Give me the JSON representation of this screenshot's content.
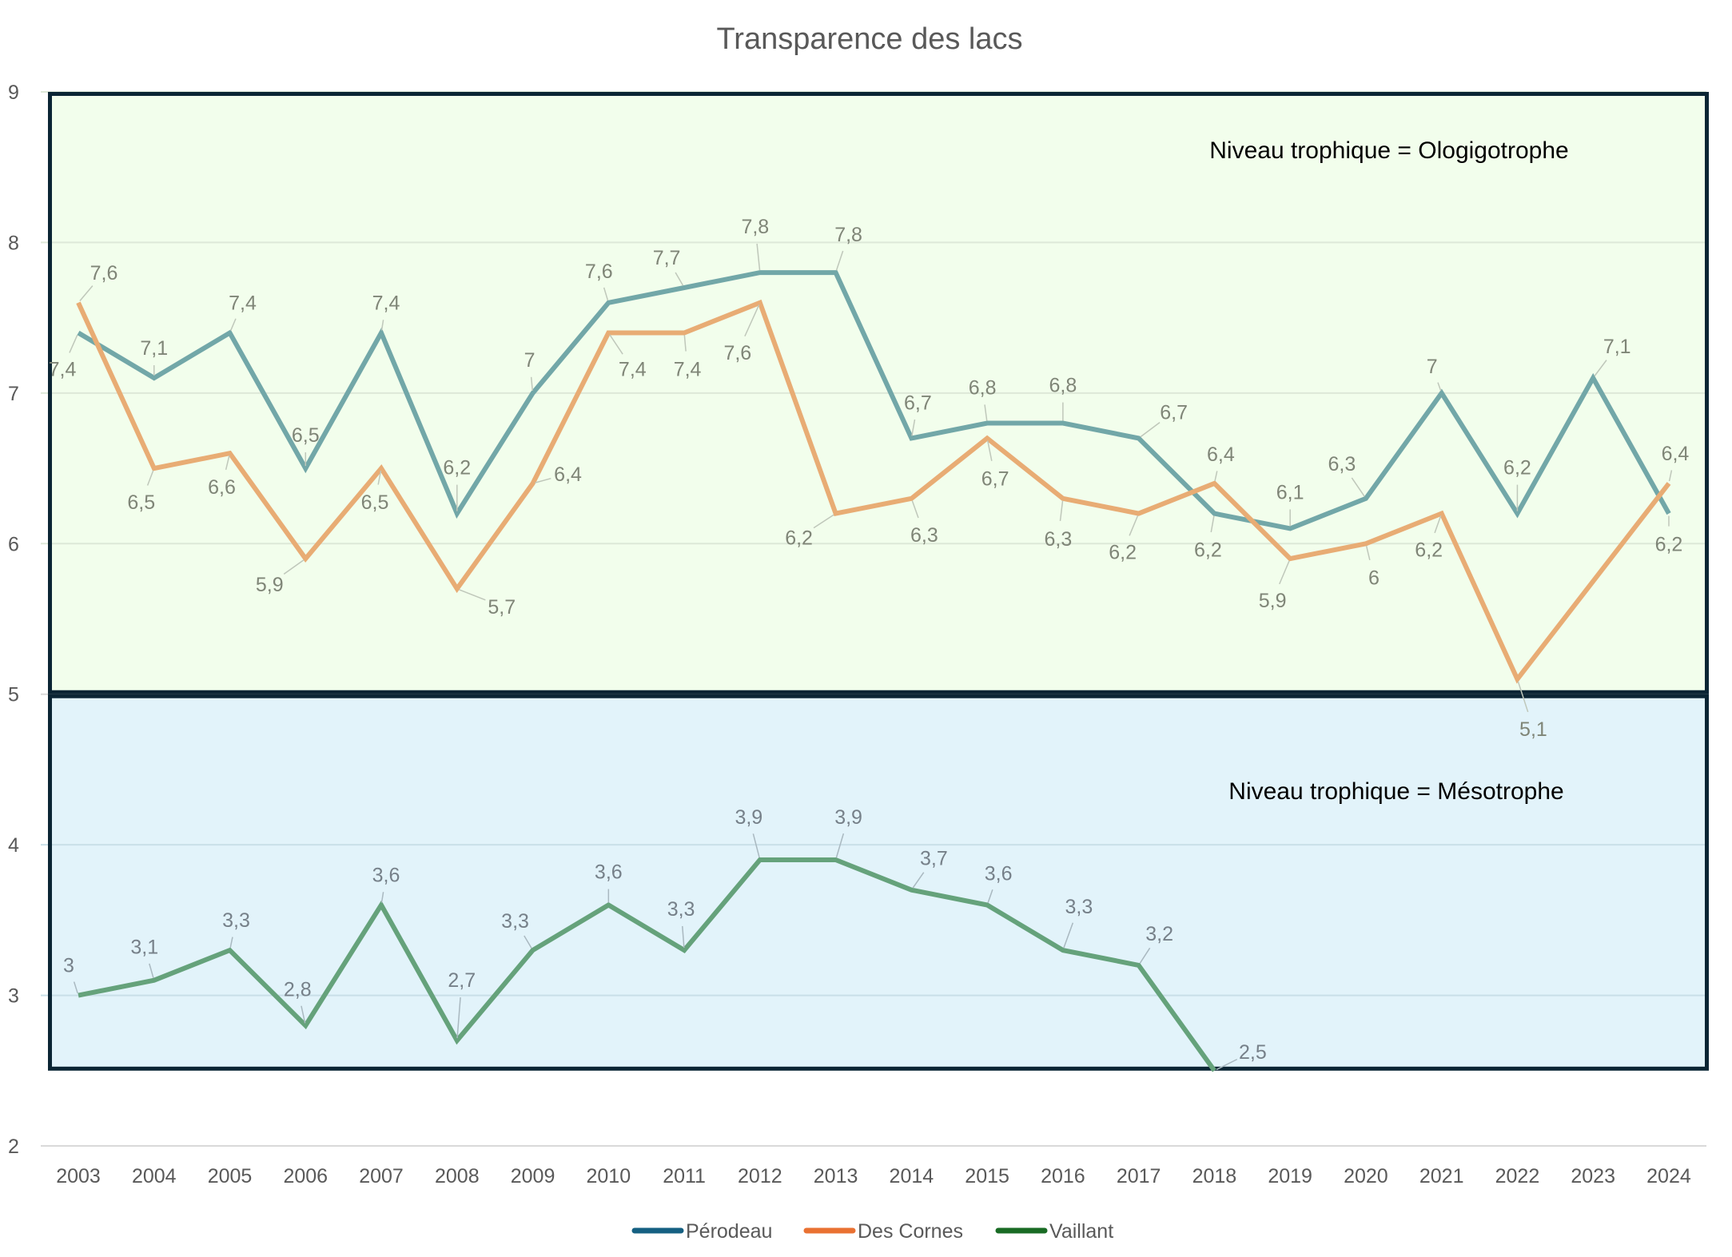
{
  "chart_data": {
    "type": "line",
    "title": "Transparence des lacs",
    "xlabel": "",
    "ylabel": "",
    "ylim": [
      2,
      9
    ],
    "yticks": [
      "2",
      "3",
      "4",
      "5",
      "6",
      "7",
      "8",
      "9"
    ],
    "grid": true,
    "legend_position": "bottom",
    "categories": [
      "2003",
      "2004",
      "2005",
      "2006",
      "2007",
      "2008",
      "2009",
      "2010",
      "2011",
      "2012",
      "2013",
      "2014",
      "2015",
      "2016",
      "2017",
      "2018",
      "2019",
      "2020",
      "2021",
      "2022",
      "2023",
      "2024"
    ],
    "series": [
      {
        "name": "Pérodeau",
        "legend_color": "#156082",
        "line_color": "#72A7A8",
        "label_color": "#7F8577",
        "values": [
          7.4,
          7.1,
          7.4,
          6.5,
          7.4,
          6.2,
          7.0,
          7.6,
          7.7,
          7.8,
          7.8,
          6.7,
          6.8,
          6.8,
          6.7,
          6.2,
          6.1,
          6.3,
          7.0,
          6.2,
          7.1,
          6.2
        ],
        "labels": [
          "7,4",
          "7,1",
          "7,4",
          "6,5",
          "7,4",
          "6,2",
          "7",
          "7,6",
          "7,7",
          "7,8",
          "7,8",
          "6,7",
          "6,8",
          "6,8",
          "6,7",
          "6,2",
          "6,1",
          "6,3",
          "7",
          "6,2",
          "7,1",
          "6,2"
        ]
      },
      {
        "name": "Des Cornes",
        "legend_color": "#E97132",
        "line_color": "#E8AC74",
        "label_color": "#7F8577",
        "values": [
          7.6,
          6.5,
          6.6,
          5.9,
          6.5,
          5.7,
          6.4,
          7.4,
          7.4,
          7.6,
          6.2,
          6.3,
          6.7,
          6.3,
          6.2,
          6.4,
          5.9,
          6.0,
          6.2,
          5.1,
          null,
          6.4
        ],
        "labels": [
          "7,6",
          "6,5",
          "6,6",
          "5,9",
          "6,5",
          "5,7",
          "6,4",
          "7,4",
          "7,4",
          "7,6",
          "6,2",
          "6,3",
          "6,7",
          "6,3",
          "6,2",
          "6,4",
          "5,9",
          "6",
          "6,2",
          "5,1",
          null,
          "6,4"
        ]
      },
      {
        "name": "Vaillant",
        "legend_color": "#196B24",
        "line_color": "#65A27B",
        "label_color": "#768089",
        "values": [
          3.0,
          3.1,
          3.3,
          2.8,
          3.6,
          2.7,
          3.3,
          3.6,
          3.3,
          3.9,
          3.9,
          3.7,
          3.6,
          3.3,
          3.2,
          2.5,
          null,
          null,
          null,
          null,
          null,
          null
        ],
        "labels": [
          "3",
          "3,1",
          "3,3",
          "2,8",
          "3,6",
          "2,7",
          "3,3",
          "3,6",
          "3,3",
          "3,9",
          "3,9",
          "3,7",
          "3,6",
          "3,3",
          "3,2",
          "2,5",
          null,
          null,
          null,
          null,
          null,
          null
        ]
      }
    ],
    "zones": [
      {
        "label": "Niveau trophique = Ologigotrophe",
        "from": 5,
        "to": 9,
        "fill": "#F2FEEC"
      },
      {
        "label": "Niveau trophique = Mésotrophe",
        "from": 2.5,
        "to": 5,
        "fill": "#E2F3FA"
      }
    ],
    "zone_border_color": "#0B2534"
  }
}
